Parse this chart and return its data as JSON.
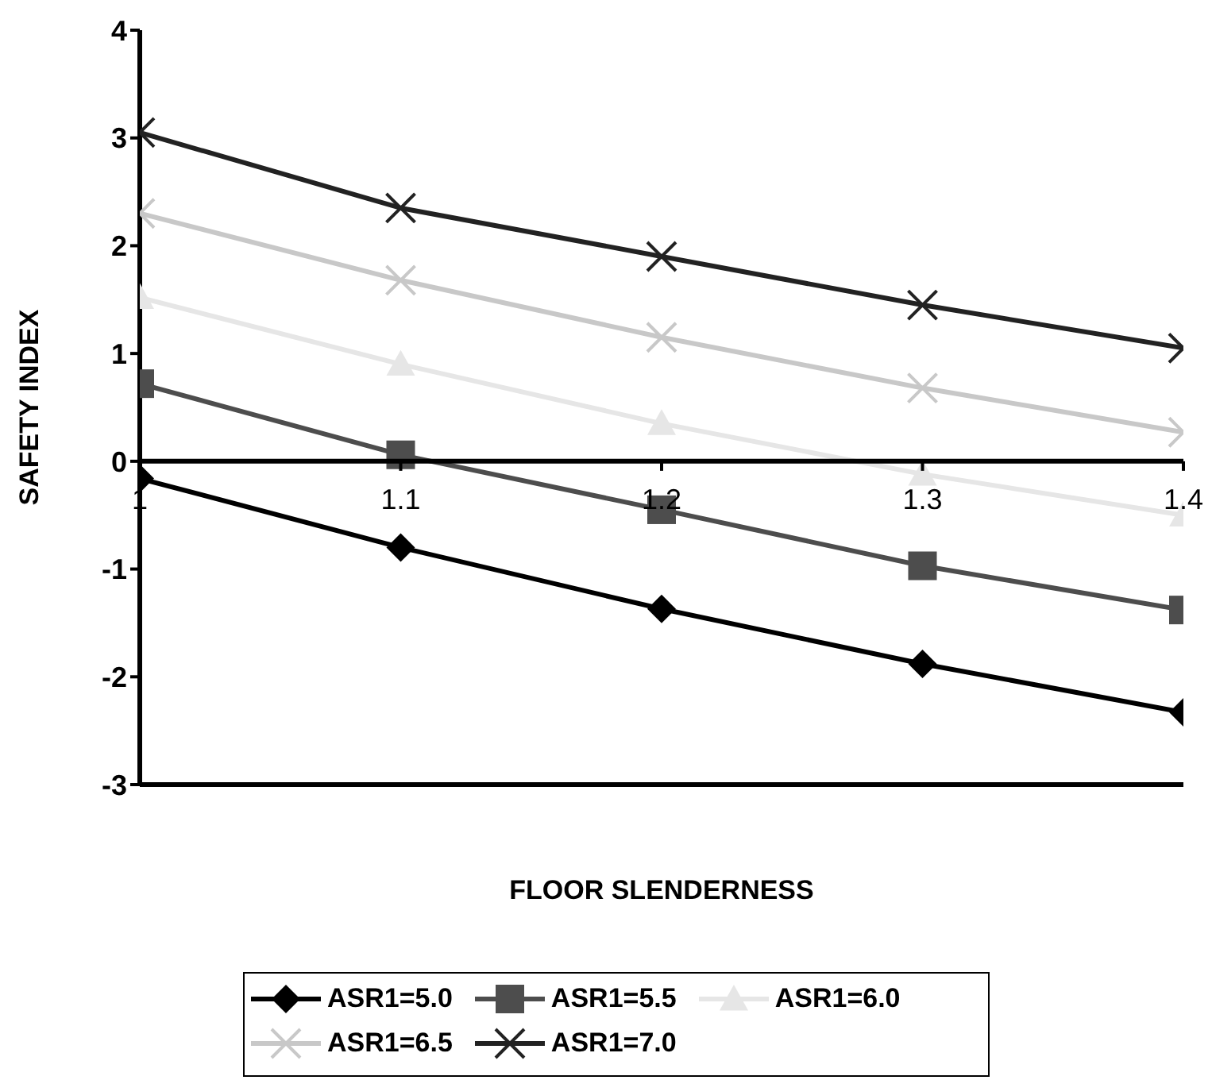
{
  "chart_data": {
    "type": "line",
    "xlabel": "FLOOR SLENDERNESS",
    "ylabel": "SAFETY INDEX",
    "x": [
      1,
      1.1,
      1.2,
      1.3,
      1.4
    ],
    "xlim": [
      1,
      1.4
    ],
    "xticks": [
      1,
      1.1,
      1.2,
      1.3,
      1.4
    ],
    "ylim": [
      -3,
      4
    ],
    "yticks": [
      -3,
      -2,
      -1,
      0,
      1,
      2,
      3,
      4
    ],
    "legend": "bottom",
    "series": [
      {
        "name": "ASR1=5.0",
        "color": "#000000",
        "marker": "diamond",
        "values": [
          -0.16,
          -0.8,
          -1.37,
          -1.88,
          -2.33
        ]
      },
      {
        "name": "ASR1=5.5",
        "color": "#4d4d4d",
        "marker": "square",
        "values": [
          0.72,
          0.06,
          -0.45,
          -0.97,
          -1.38
        ]
      },
      {
        "name": "ASR1=6.0",
        "color": "#e6e6e6",
        "marker": "triangle",
        "values": [
          1.52,
          0.9,
          0.35,
          -0.12,
          -0.5
        ]
      },
      {
        "name": "ASR1=6.5",
        "color": "#c8c8c8",
        "marker": "cross",
        "values": [
          2.3,
          1.68,
          1.15,
          0.68,
          0.27
        ]
      },
      {
        "name": "ASR1=7.0",
        "color": "#222222",
        "marker": "cross",
        "values": [
          3.05,
          2.35,
          1.9,
          1.45,
          1.05
        ]
      }
    ]
  }
}
